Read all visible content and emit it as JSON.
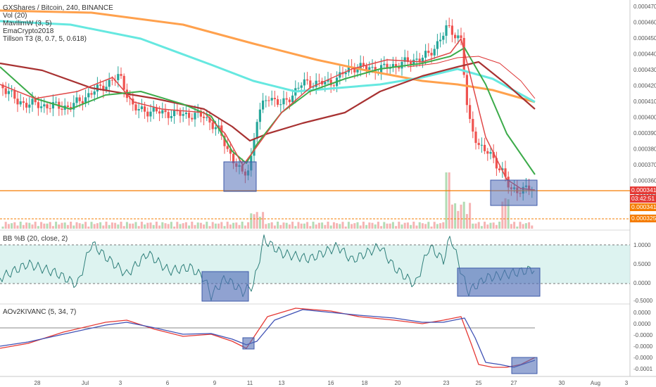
{
  "header": {
    "title": "GXShares / Bitcoin, 240, BINANCE",
    "indicators": [
      "Vol (20)",
      "MavilimW (3, 5)",
      "EmaCrypto2018",
      "Tillson T3 (8, 0.7, 5, 0.618)"
    ]
  },
  "price_axis": [
    "0.0004700",
    "0.0004600",
    "0.0004500",
    "0.0004400",
    "0.0004300",
    "0.0004200",
    "0.0004100",
    "0.0004000",
    "0.0003900",
    "0.0003800",
    "0.0003700",
    "0.0003600",
    "0.0003500"
  ],
  "badges": {
    "last_price": "0.0003419",
    "countdown": "03:42:51",
    "price2": "0.0003416",
    "price3": "0.0003251"
  },
  "bb_pane": {
    "title": "BB %B (20, close, 2)",
    "axis": [
      "1.0000",
      "0.5000",
      "0.0000",
      "-0.5000"
    ]
  },
  "ao_pane": {
    "title": "AOv2KIVANC (5, 34, 7)",
    "axis": [
      "0.0000",
      "0.0000",
      "-0.0000",
      "-0.0000",
      "-0.0000",
      "-0.0001"
    ]
  },
  "time_axis": [
    "28",
    "Jul",
    "3",
    "6",
    "9",
    "11",
    "13",
    "16",
    "18",
    "20",
    "23",
    "25",
    "27",
    "30",
    "Aug",
    "3"
  ],
  "colors": {
    "candle_up": "#26a69a",
    "candle_down": "#ef5350",
    "orange_ma": "#ffa14d",
    "cyan_ma": "#66e8e0",
    "green_ma": "#3cab4a",
    "darkred_ma": "#a83232",
    "red_ma": "#e04848",
    "box": "#5470b8",
    "bb_fill": "#cfeeea",
    "bb_line": "#2f7f7a",
    "ao_red": "#e53935",
    "ao_blue": "#3f51b5"
  },
  "chart_data": {
    "type": "line",
    "title": "GXShares / Bitcoin, 240, BINANCE",
    "x": [
      "28",
      "Jul",
      "3",
      "6",
      "9",
      "11",
      "13",
      "16",
      "18",
      "20",
      "23",
      "25",
      "27"
    ],
    "series": [
      {
        "name": "Close",
        "values": [
          0.000408,
          0.000393,
          0.000418,
          0.000392,
          0.000368,
          0.000372,
          0.0004,
          0.000432,
          0.000428,
          0.000436,
          0.000452,
          0.00037,
          0.000342
        ]
      },
      {
        "name": "MavilimW (3, 5)",
        "values": [
          0.000398,
          0.000396,
          0.000406,
          0.000394,
          0.000372,
          0.000358,
          0.000388,
          0.00042,
          0.00043,
          0.000434,
          0.000442,
          0.000395,
          0.000352
        ]
      },
      {
        "name": "EmaCrypto2018",
        "values": [
          0.000468,
          0.000466,
          0.000464,
          0.000458,
          0.000448,
          0.00044,
          0.000432,
          0.000428,
          0.000425,
          0.00042,
          0.000414,
          0.000406,
          0.0004
        ]
      },
      {
        "name": "Tillson T3 (8, 0.7, 5, 0.618)",
        "values": [
          0.00041,
          0.0004,
          0.000406,
          0.000396,
          0.000386,
          0.000376,
          0.00038,
          0.0004,
          0.000416,
          0.00043,
          0.00044,
          0.000426,
          0.000397
        ]
      }
    ],
    "ylim": [
      0.00033,
      0.00047
    ],
    "bb_percent_b": [
      0.2,
      0.5,
      0.9,
      0.3,
      0.1,
      0.6,
      0.8,
      0.7,
      0.85,
      0.6,
      0.9,
      0.1,
      0.4
    ],
    "aov2": [
      -1.3e-05,
      -8e-06,
      2e-06,
      -5e-06,
      -1e-05,
      -1.8e-05,
      1.2e-05,
      1.6e-05,
      1.2e-05,
      8e-06,
      1e-05,
      -6e-05,
      -6.8e-05
    ]
  }
}
